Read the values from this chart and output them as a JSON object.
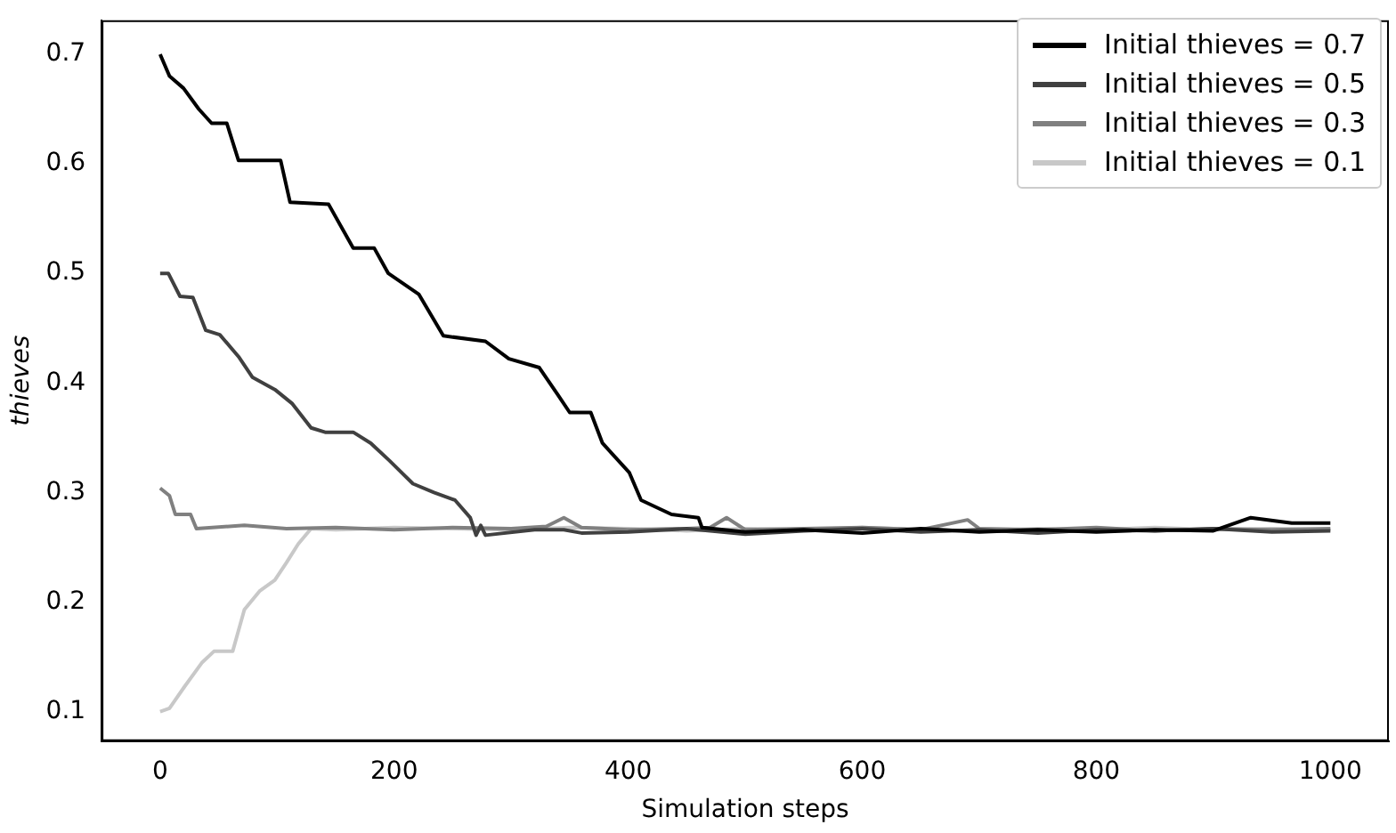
{
  "chart_data": {
    "type": "line",
    "xlabel": "Simulation steps",
    "ylabel": "thieves",
    "xlim": [
      -50,
      1050
    ],
    "ylim": [
      0.073,
      0.731
    ],
    "xticks": [
      0,
      200,
      400,
      600,
      800,
      1000
    ],
    "yticks": [
      0.1,
      0.2,
      0.3,
      0.4,
      0.5,
      0.6,
      0.7
    ],
    "grid": false,
    "legend": "top right",
    "marker": "none",
    "line_style": "solid",
    "series": [
      {
        "name": "Initial thieves = 0.7",
        "color": "#000000",
        "x": [
          0,
          8,
          20,
          33,
          44,
          57,
          67,
          103,
          111,
          144,
          165,
          183,
          195,
          221,
          242,
          278,
          298,
          324,
          340,
          350,
          368,
          378,
          401,
          411,
          437,
          460,
          463,
          500,
          550,
          600,
          650,
          700,
          750,
          800,
          850,
          900,
          932,
          967,
          1000
        ],
        "values": [
          0.7,
          0.68,
          0.669,
          0.65,
          0.637,
          0.637,
          0.603,
          0.603,
          0.565,
          0.563,
          0.523,
          0.523,
          0.5,
          0.481,
          0.443,
          0.438,
          0.422,
          0.414,
          0.389,
          0.373,
          0.373,
          0.345,
          0.318,
          0.293,
          0.28,
          0.277,
          0.268,
          0.264,
          0.266,
          0.263,
          0.267,
          0.264,
          0.266,
          0.264,
          0.266,
          0.265,
          0.277,
          0.272,
          0.272
        ]
      },
      {
        "name": "Initial thieves = 0.5",
        "color": "#404040",
        "x": [
          0,
          7,
          17,
          28,
          39,
          51,
          67,
          79,
          98,
          113,
          129,
          141,
          165,
          180,
          196,
          216,
          234,
          252,
          265,
          270,
          274,
          278,
          320,
          345,
          360,
          400,
          450,
          500,
          550,
          600,
          650,
          700,
          750,
          800,
          850,
          900,
          950,
          1000
        ],
        "values": [
          0.5,
          0.5,
          0.479,
          0.478,
          0.448,
          0.444,
          0.424,
          0.405,
          0.394,
          0.381,
          0.359,
          0.355,
          0.355,
          0.345,
          0.329,
          0.308,
          0.3,
          0.293,
          0.277,
          0.261,
          0.27,
          0.261,
          0.266,
          0.266,
          0.263,
          0.264,
          0.267,
          0.262,
          0.265,
          0.267,
          0.264,
          0.266,
          0.263,
          0.266,
          0.265,
          0.267,
          0.264,
          0.265
        ]
      },
      {
        "name": "Initial thieves = 0.3",
        "color": "#808080",
        "x": [
          0,
          8,
          13,
          26,
          31,
          72,
          108,
          150,
          200,
          250,
          300,
          330,
          345,
          360,
          400,
          450,
          470,
          484,
          500,
          550,
          600,
          650,
          690,
          700,
          750,
          800,
          850,
          900,
          950,
          1000
        ],
        "values": [
          0.304,
          0.297,
          0.28,
          0.28,
          0.267,
          0.27,
          0.267,
          0.268,
          0.266,
          0.268,
          0.267,
          0.269,
          0.277,
          0.268,
          0.266,
          0.267,
          0.268,
          0.277,
          0.266,
          0.267,
          0.268,
          0.266,
          0.275,
          0.267,
          0.266,
          0.268,
          0.265,
          0.267,
          0.266,
          0.267
        ]
      },
      {
        "name": "Initial thieves = 0.1",
        "color": "#c8c8c8",
        "x": [
          0,
          8,
          21,
          36,
          46,
          62,
          72,
          85,
          98,
          108,
          118,
          129,
          150,
          200,
          250,
          300,
          350,
          400,
          450,
          500,
          550,
          600,
          650,
          700,
          750,
          800,
          850,
          900,
          950,
          1000
        ],
        "values": [
          0.1,
          0.103,
          0.123,
          0.145,
          0.155,
          0.155,
          0.193,
          0.21,
          0.22,
          0.236,
          0.253,
          0.267,
          0.266,
          0.268,
          0.267,
          0.266,
          0.268,
          0.267,
          0.265,
          0.267,
          0.266,
          0.268,
          0.266,
          0.265,
          0.267,
          0.266,
          0.268,
          0.266,
          0.267,
          0.266
        ]
      }
    ]
  }
}
